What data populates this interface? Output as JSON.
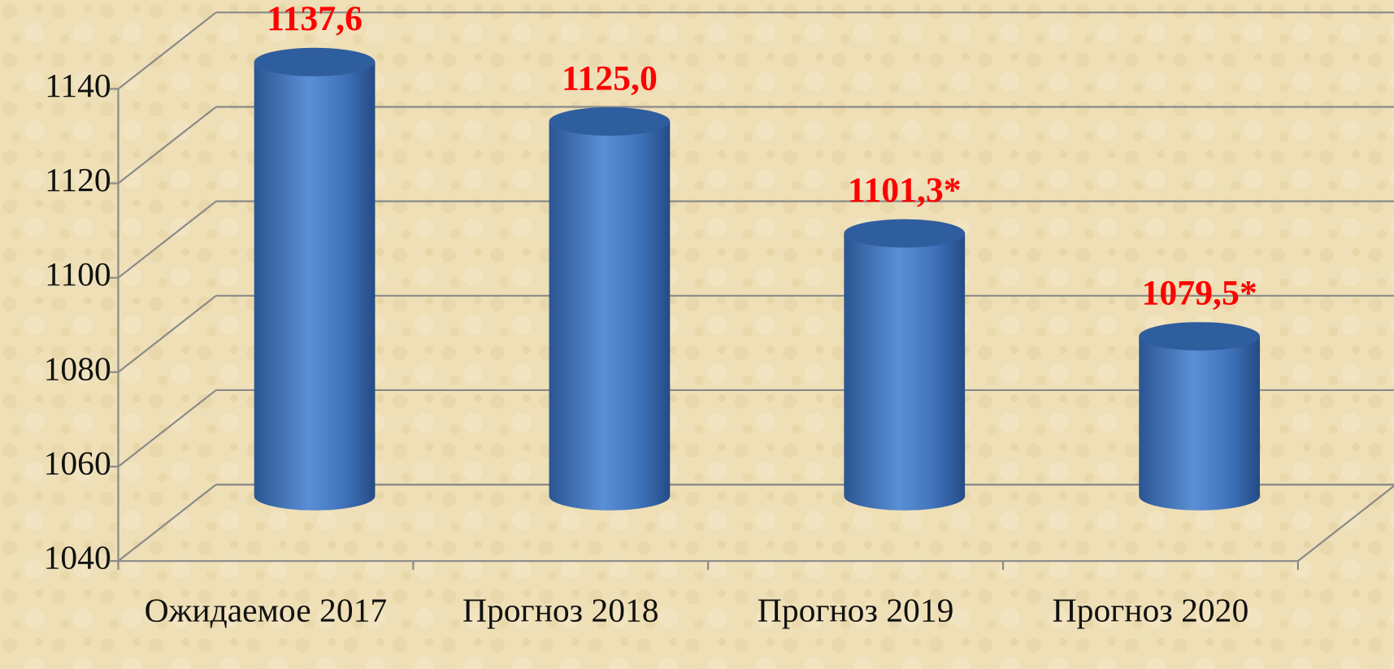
{
  "chart_data": {
    "type": "bar",
    "categories": [
      "Ожидаемое 2017",
      "Прогноз 2018",
      "Прогноз 2019",
      "Прогноз 2020"
    ],
    "values": [
      1137.6,
      1125.0,
      1101.3,
      1079.5
    ],
    "value_labels": [
      "1137,6",
      "1125,0",
      "1101,3*",
      "1079,5*"
    ],
    "color": "#4a7cc4",
    "label_color": "#ff0000",
    "ylim": [
      1040,
      1140
    ],
    "yticks": [
      1040,
      1060,
      1080,
      1100,
      1120,
      1140
    ],
    "grid": true
  }
}
